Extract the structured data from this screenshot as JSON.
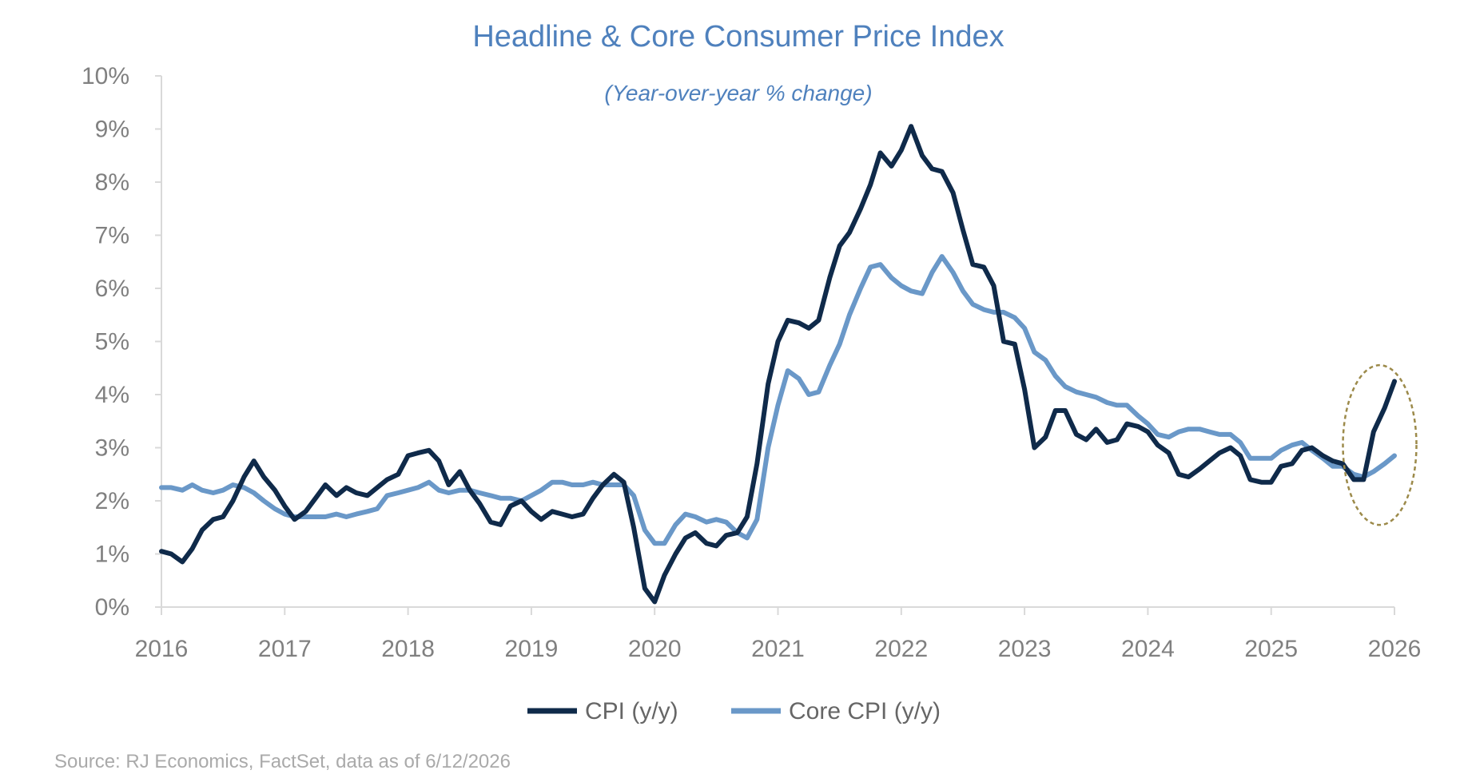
{
  "chart_data": {
    "type": "line",
    "title": "Headline & Core Consumer Price Index",
    "subtitle": "(Year-over-year % change)",
    "source": "Source: RJ Economics, FactSet, data as of 6/12/2026",
    "xlim": [
      2016,
      2026
    ],
    "ylim": [
      0,
      10
    ],
    "x_ticks": [
      "2016",
      "2017",
      "2018",
      "2019",
      "2020",
      "2021",
      "2022",
      "2023",
      "2024",
      "2025",
      "2026"
    ],
    "y_ticks": [
      "0%",
      "1%",
      "2%",
      "3%",
      "4%",
      "5%",
      "6%",
      "7%",
      "8%",
      "9%",
      "10%"
    ],
    "grid": false,
    "legend_position": "bottom",
    "highlight": {
      "shape": "dashed-ellipse",
      "around": "latest readings",
      "color": "#9c8a4a"
    },
    "series": [
      {
        "name": "CPI (y/y)",
        "color": "#0f2a4a",
        "points": [
          [
            2016.0,
            1.05
          ],
          [
            2016.08,
            1.0
          ],
          [
            2016.17,
            0.85
          ],
          [
            2016.25,
            1.1
          ],
          [
            2016.33,
            1.45
          ],
          [
            2016.42,
            1.65
          ],
          [
            2016.5,
            1.7
          ],
          [
            2016.58,
            2.0
          ],
          [
            2016.67,
            2.45
          ],
          [
            2016.75,
            2.75
          ],
          [
            2016.83,
            2.45
          ],
          [
            2016.92,
            2.2
          ],
          [
            2017.0,
            1.9
          ],
          [
            2017.08,
            1.65
          ],
          [
            2017.17,
            1.8
          ],
          [
            2017.25,
            2.05
          ],
          [
            2017.33,
            2.3
          ],
          [
            2017.42,
            2.1
          ],
          [
            2017.5,
            2.25
          ],
          [
            2017.58,
            2.15
          ],
          [
            2017.67,
            2.1
          ],
          [
            2017.75,
            2.25
          ],
          [
            2017.83,
            2.4
          ],
          [
            2017.92,
            2.5
          ],
          [
            2018.0,
            2.85
          ],
          [
            2018.08,
            2.9
          ],
          [
            2018.17,
            2.95
          ],
          [
            2018.25,
            2.75
          ],
          [
            2018.33,
            2.3
          ],
          [
            2018.42,
            2.55
          ],
          [
            2018.5,
            2.2
          ],
          [
            2018.58,
            1.95
          ],
          [
            2018.67,
            1.6
          ],
          [
            2018.75,
            1.55
          ],
          [
            2018.83,
            1.9
          ],
          [
            2018.92,
            2.0
          ],
          [
            2019.0,
            1.8
          ],
          [
            2019.08,
            1.65
          ],
          [
            2019.17,
            1.8
          ],
          [
            2019.25,
            1.75
          ],
          [
            2019.33,
            1.7
          ],
          [
            2019.42,
            1.75
          ],
          [
            2019.5,
            2.05
          ],
          [
            2019.58,
            2.3
          ],
          [
            2019.67,
            2.5
          ],
          [
            2019.75,
            2.35
          ],
          [
            2019.83,
            1.5
          ],
          [
            2019.92,
            0.35
          ],
          [
            2020.0,
            0.1
          ],
          [
            2020.08,
            0.6
          ],
          [
            2020.17,
            1.0
          ],
          [
            2020.25,
            1.3
          ],
          [
            2020.33,
            1.4
          ],
          [
            2020.42,
            1.2
          ],
          [
            2020.5,
            1.15
          ],
          [
            2020.58,
            1.35
          ],
          [
            2020.67,
            1.4
          ],
          [
            2020.75,
            1.7
          ],
          [
            2020.83,
            2.7
          ],
          [
            2020.92,
            4.2
          ],
          [
            2021.0,
            5.0
          ],
          [
            2021.08,
            5.4
          ],
          [
            2021.17,
            5.35
          ],
          [
            2021.25,
            5.25
          ],
          [
            2021.33,
            5.4
          ],
          [
            2021.42,
            6.2
          ],
          [
            2021.5,
            6.8
          ],
          [
            2021.58,
            7.05
          ],
          [
            2021.67,
            7.5
          ],
          [
            2021.75,
            7.95
          ],
          [
            2021.83,
            8.55
          ],
          [
            2021.92,
            8.3
          ],
          [
            2022.0,
            8.6
          ],
          [
            2022.08,
            9.05
          ],
          [
            2022.17,
            8.5
          ],
          [
            2022.25,
            8.25
          ],
          [
            2022.33,
            8.2
          ],
          [
            2022.42,
            7.8
          ],
          [
            2022.5,
            7.1
          ],
          [
            2022.58,
            6.45
          ],
          [
            2022.67,
            6.4
          ],
          [
            2022.75,
            6.05
          ],
          [
            2022.83,
            5.0
          ],
          [
            2022.92,
            4.95
          ],
          [
            2023.0,
            4.1
          ],
          [
            2023.08,
            3.0
          ],
          [
            2023.17,
            3.2
          ],
          [
            2023.25,
            3.7
          ],
          [
            2023.33,
            3.7
          ],
          [
            2023.42,
            3.25
          ],
          [
            2023.5,
            3.15
          ],
          [
            2023.58,
            3.35
          ],
          [
            2023.67,
            3.1
          ],
          [
            2023.75,
            3.15
          ],
          [
            2023.83,
            3.45
          ],
          [
            2023.92,
            3.4
          ],
          [
            2024.0,
            3.3
          ],
          [
            2024.08,
            3.05
          ],
          [
            2024.17,
            2.9
          ],
          [
            2024.25,
            2.5
          ],
          [
            2024.33,
            2.45
          ],
          [
            2024.42,
            2.6
          ],
          [
            2024.5,
            2.75
          ],
          [
            2024.58,
            2.9
          ],
          [
            2024.67,
            3.0
          ],
          [
            2024.75,
            2.85
          ],
          [
            2024.83,
            2.4
          ],
          [
            2024.92,
            2.35
          ],
          [
            2025.0,
            2.35
          ],
          [
            2025.08,
            2.65
          ],
          [
            2025.17,
            2.7
          ],
          [
            2025.25,
            2.95
          ],
          [
            2025.33,
            3.0
          ],
          [
            2025.42,
            2.85
          ],
          [
            2025.5,
            2.75
          ],
          [
            2025.58,
            2.7
          ],
          [
            2025.67,
            2.4
          ],
          [
            2025.75,
            2.4
          ],
          [
            2025.83,
            3.3
          ],
          [
            2025.92,
            3.75
          ],
          [
            2026.0,
            4.25
          ]
        ]
      },
      {
        "name": "Core CPI (y/y)",
        "color": "#6a98c8",
        "points": [
          [
            2016.0,
            2.25
          ],
          [
            2016.08,
            2.25
          ],
          [
            2016.17,
            2.2
          ],
          [
            2016.25,
            2.3
          ],
          [
            2016.33,
            2.2
          ],
          [
            2016.42,
            2.15
          ],
          [
            2016.5,
            2.2
          ],
          [
            2016.58,
            2.3
          ],
          [
            2016.67,
            2.25
          ],
          [
            2016.75,
            2.15
          ],
          [
            2016.83,
            2.0
          ],
          [
            2016.92,
            1.85
          ],
          [
            2017.0,
            1.75
          ],
          [
            2017.08,
            1.7
          ],
          [
            2017.17,
            1.7
          ],
          [
            2017.25,
            1.7
          ],
          [
            2017.33,
            1.7
          ],
          [
            2017.42,
            1.75
          ],
          [
            2017.5,
            1.7
          ],
          [
            2017.58,
            1.75
          ],
          [
            2017.67,
            1.8
          ],
          [
            2017.75,
            1.85
          ],
          [
            2017.83,
            2.1
          ],
          [
            2017.92,
            2.15
          ],
          [
            2018.0,
            2.2
          ],
          [
            2018.08,
            2.25
          ],
          [
            2018.17,
            2.35
          ],
          [
            2018.25,
            2.2
          ],
          [
            2018.33,
            2.15
          ],
          [
            2018.42,
            2.2
          ],
          [
            2018.5,
            2.2
          ],
          [
            2018.58,
            2.15
          ],
          [
            2018.67,
            2.1
          ],
          [
            2018.75,
            2.05
          ],
          [
            2018.83,
            2.05
          ],
          [
            2018.92,
            2.0
          ],
          [
            2019.0,
            2.1
          ],
          [
            2019.08,
            2.2
          ],
          [
            2019.17,
            2.35
          ],
          [
            2019.25,
            2.35
          ],
          [
            2019.33,
            2.3
          ],
          [
            2019.42,
            2.3
          ],
          [
            2019.5,
            2.35
          ],
          [
            2019.58,
            2.3
          ],
          [
            2019.67,
            2.3
          ],
          [
            2019.75,
            2.3
          ],
          [
            2019.83,
            2.1
          ],
          [
            2019.92,
            1.45
          ],
          [
            2020.0,
            1.2
          ],
          [
            2020.08,
            1.2
          ],
          [
            2020.17,
            1.55
          ],
          [
            2020.25,
            1.75
          ],
          [
            2020.33,
            1.7
          ],
          [
            2020.42,
            1.6
          ],
          [
            2020.5,
            1.65
          ],
          [
            2020.58,
            1.6
          ],
          [
            2020.67,
            1.4
          ],
          [
            2020.75,
            1.3
          ],
          [
            2020.83,
            1.65
          ],
          [
            2020.92,
            3.0
          ],
          [
            2021.0,
            3.8
          ],
          [
            2021.08,
            4.45
          ],
          [
            2021.17,
            4.3
          ],
          [
            2021.25,
            4.0
          ],
          [
            2021.33,
            4.05
          ],
          [
            2021.42,
            4.55
          ],
          [
            2021.5,
            4.95
          ],
          [
            2021.58,
            5.5
          ],
          [
            2021.67,
            6.0
          ],
          [
            2021.75,
            6.4
          ],
          [
            2021.83,
            6.45
          ],
          [
            2021.92,
            6.2
          ],
          [
            2022.0,
            6.05
          ],
          [
            2022.08,
            5.95
          ],
          [
            2022.17,
            5.9
          ],
          [
            2022.25,
            6.3
          ],
          [
            2022.33,
            6.6
          ],
          [
            2022.42,
            6.3
          ],
          [
            2022.5,
            5.95
          ],
          [
            2022.58,
            5.7
          ],
          [
            2022.67,
            5.6
          ],
          [
            2022.75,
            5.55
          ],
          [
            2022.83,
            5.55
          ],
          [
            2022.92,
            5.45
          ],
          [
            2023.0,
            5.25
          ],
          [
            2023.08,
            4.8
          ],
          [
            2023.17,
            4.65
          ],
          [
            2023.25,
            4.35
          ],
          [
            2023.33,
            4.15
          ],
          [
            2023.42,
            4.05
          ],
          [
            2023.5,
            4.0
          ],
          [
            2023.58,
            3.95
          ],
          [
            2023.67,
            3.85
          ],
          [
            2023.75,
            3.8
          ],
          [
            2023.83,
            3.8
          ],
          [
            2023.92,
            3.6
          ],
          [
            2024.0,
            3.45
          ],
          [
            2024.08,
            3.25
          ],
          [
            2024.17,
            3.2
          ],
          [
            2024.25,
            3.3
          ],
          [
            2024.33,
            3.35
          ],
          [
            2024.42,
            3.35
          ],
          [
            2024.5,
            3.3
          ],
          [
            2024.58,
            3.25
          ],
          [
            2024.67,
            3.25
          ],
          [
            2024.75,
            3.1
          ],
          [
            2024.83,
            2.8
          ],
          [
            2024.92,
            2.8
          ],
          [
            2025.0,
            2.8
          ],
          [
            2025.08,
            2.95
          ],
          [
            2025.17,
            3.05
          ],
          [
            2025.25,
            3.1
          ],
          [
            2025.33,
            2.95
          ],
          [
            2025.42,
            2.8
          ],
          [
            2025.5,
            2.65
          ],
          [
            2025.58,
            2.65
          ],
          [
            2025.67,
            2.5
          ],
          [
            2025.75,
            2.45
          ],
          [
            2025.83,
            2.55
          ],
          [
            2025.92,
            2.7
          ],
          [
            2026.0,
            2.85
          ]
        ]
      }
    ]
  }
}
